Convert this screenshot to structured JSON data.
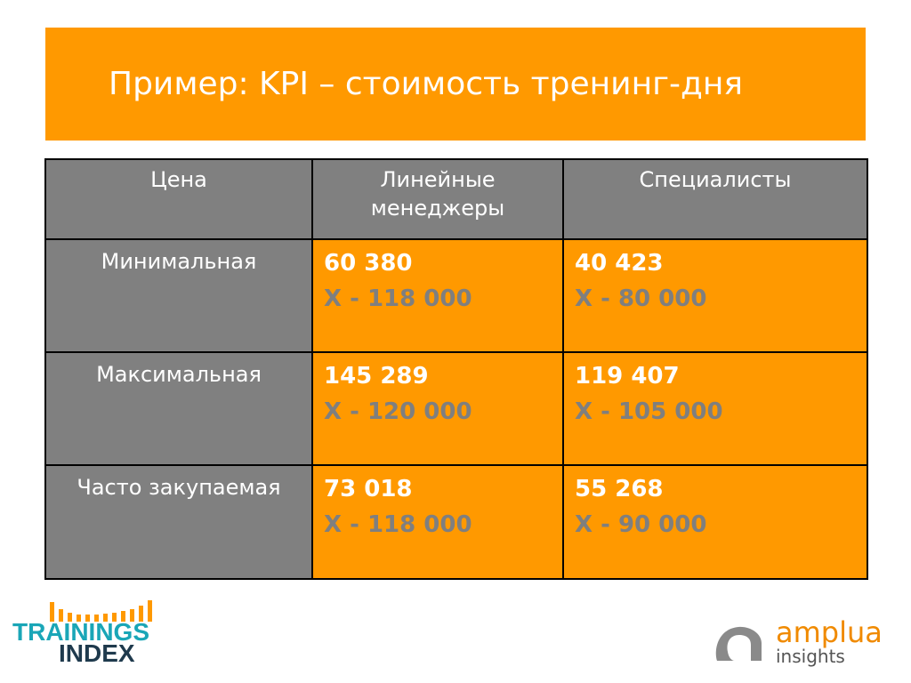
{
  "title": "Пример: KPI – стоимость тренинг-дня",
  "table": {
    "headers": [
      "Цена",
      "Линейные менеджеры",
      "Специалисты"
    ],
    "rows": [
      {
        "label": "Минимальная",
        "managers": {
          "value": "60 380",
          "x": "X - 118 000"
        },
        "specialists": {
          "value": "40 423",
          "x": "X - 80 000"
        }
      },
      {
        "label": "Максимальная",
        "managers": {
          "value": "145 289",
          "x": "X - 120 000"
        },
        "specialists": {
          "value": "119 407",
          "x": "X - 105 000"
        }
      },
      {
        "label": "Часто закупаемая",
        "managers": {
          "value": "73 018",
          "x": "X - 118 000"
        },
        "specialists": {
          "value": "55 268",
          "x": "X - 90 000"
        }
      }
    ]
  },
  "logos": {
    "left": {
      "line1": "TRAININGS",
      "line2": "INDEX"
    },
    "right": {
      "word": "amplua",
      "sub": "insights"
    }
  },
  "colors": {
    "accent": "#ff9900",
    "header_gray": "#808080",
    "muted_value": "#7f7f7f"
  }
}
